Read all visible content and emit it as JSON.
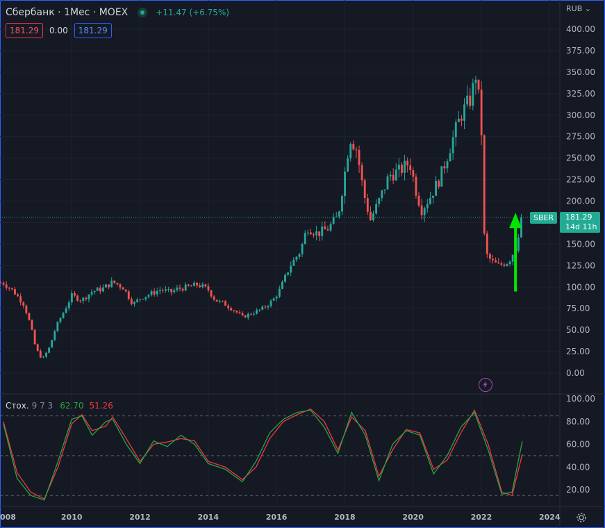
{
  "header": {
    "title": "Сбербанк · 1Мес · MOEX",
    "change": "+11.47 (+6.75%)",
    "price_red": "181.29",
    "price_mid": "0.00",
    "price_blue": "181.29",
    "currency": "RUB"
  },
  "price_tag": {
    "symbol": "SBER",
    "price": "181.29",
    "countdown": "14d 11h"
  },
  "stoch": {
    "label": "Стох.",
    "params": "9 7 3",
    "k_value": "62.70",
    "d_value": "51.26"
  },
  "colors": {
    "up": "#26a69a",
    "down": "#ef5350",
    "k_line": "#26a641",
    "d_line": "#f23645",
    "arrow": "#00e600"
  },
  "icons": {
    "settings": "gear-icon",
    "bolt": "lightning-icon",
    "status": "market-status-icon"
  },
  "chart_data": {
    "type": "candlestick",
    "y_ticks": [
      "400.00",
      "375.00",
      "350.00",
      "325.00",
      "300.00",
      "275.00",
      "250.00",
      "225.00",
      "200.00",
      "175.00",
      "150.00",
      "125.00",
      "100.00",
      "75.00",
      "50.00",
      "25.00",
      "0.00"
    ],
    "ylim": [
      0,
      400
    ],
    "x_ticks": [
      "008",
      "2010",
      "2012",
      "2014",
      "2016",
      "2018",
      "2020",
      "2022",
      "2024"
    ],
    "xlim": [
      2007.9,
      2024.3
    ],
    "last_price": 181.29,
    "close_series": [
      [
        2008.0,
        105
      ],
      [
        2008.3,
        95
      ],
      [
        2008.6,
        80
      ],
      [
        2008.8,
        55
      ],
      [
        2008.95,
        28
      ],
      [
        2009.15,
        16
      ],
      [
        2009.35,
        30
      ],
      [
        2009.55,
        55
      ],
      [
        2009.75,
        70
      ],
      [
        2010.0,
        90
      ],
      [
        2010.3,
        85
      ],
      [
        2010.6,
        95
      ],
      [
        2010.9,
        98
      ],
      [
        2011.2,
        106
      ],
      [
        2011.5,
        100
      ],
      [
        2011.8,
        80
      ],
      [
        2012.0,
        87
      ],
      [
        2012.3,
        92
      ],
      [
        2012.6,
        97
      ],
      [
        2012.9,
        94
      ],
      [
        2013.1,
        98
      ],
      [
        2013.4,
        100
      ],
      [
        2013.7,
        103
      ],
      [
        2014.0,
        97
      ],
      [
        2014.2,
        85
      ],
      [
        2014.5,
        80
      ],
      [
        2014.8,
        72
      ],
      [
        2015.0,
        65
      ],
      [
        2015.3,
        70
      ],
      [
        2015.6,
        75
      ],
      [
        2015.9,
        85
      ],
      [
        2016.1,
        97
      ],
      [
        2016.4,
        125
      ],
      [
        2016.7,
        142
      ],
      [
        2016.9,
        170
      ],
      [
        2017.2,
        162
      ],
      [
        2017.5,
        168
      ],
      [
        2017.8,
        182
      ],
      [
        2018.0,
        233
      ],
      [
        2018.15,
        275
      ],
      [
        2018.35,
        260
      ],
      [
        2018.55,
        210
      ],
      [
        2018.75,
        178
      ],
      [
        2019.0,
        200
      ],
      [
        2019.3,
        230
      ],
      [
        2019.6,
        235
      ],
      [
        2019.9,
        245
      ],
      [
        2020.1,
        210
      ],
      [
        2020.25,
        190
      ],
      [
        2020.5,
        205
      ],
      [
        2020.8,
        228
      ],
      [
        2021.1,
        265
      ],
      [
        2021.4,
        300
      ],
      [
        2021.7,
        320
      ],
      [
        2021.85,
        350
      ],
      [
        2022.0,
        285
      ],
      [
        2022.1,
        140
      ],
      [
        2022.3,
        130
      ],
      [
        2022.5,
        125
      ],
      [
        2022.8,
        130
      ],
      [
        2023.0,
        145
      ],
      [
        2023.15,
        175
      ],
      [
        2023.2,
        181.29
      ]
    ],
    "stoch_k": [
      [
        2008.0,
        78
      ],
      [
        2008.4,
        30
      ],
      [
        2008.8,
        15
      ],
      [
        2009.2,
        11
      ],
      [
        2009.6,
        45
      ],
      [
        2010.0,
        82
      ],
      [
        2010.3,
        85
      ],
      [
        2010.6,
        68
      ],
      [
        2011.0,
        80
      ],
      [
        2011.2,
        82
      ],
      [
        2011.6,
        60
      ],
      [
        2012.0,
        43
      ],
      [
        2012.4,
        63
      ],
      [
        2012.8,
        58
      ],
      [
        2013.2,
        68
      ],
      [
        2013.6,
        60
      ],
      [
        2014.0,
        43
      ],
      [
        2014.5,
        38
      ],
      [
        2015.0,
        27
      ],
      [
        2015.4,
        45
      ],
      [
        2015.8,
        70
      ],
      [
        2016.2,
        82
      ],
      [
        2016.6,
        88
      ],
      [
        2017.0,
        90
      ],
      [
        2017.4,
        75
      ],
      [
        2017.8,
        52
      ],
      [
        2018.2,
        88
      ],
      [
        2018.6,
        68
      ],
      [
        2019.0,
        28
      ],
      [
        2019.4,
        60
      ],
      [
        2019.8,
        72
      ],
      [
        2020.2,
        68
      ],
      [
        2020.6,
        34
      ],
      [
        2021.0,
        50
      ],
      [
        2021.4,
        75
      ],
      [
        2021.8,
        88
      ],
      [
        2022.2,
        55
      ],
      [
        2022.6,
        16
      ],
      [
        2022.9,
        18
      ],
      [
        2023.2,
        62.7
      ]
    ],
    "stoch_d": [
      [
        2008.0,
        80
      ],
      [
        2008.4,
        35
      ],
      [
        2008.8,
        18
      ],
      [
        2009.2,
        12
      ],
      [
        2009.6,
        40
      ],
      [
        2010.0,
        78
      ],
      [
        2010.3,
        86
      ],
      [
        2010.6,
        72
      ],
      [
        2011.0,
        76
      ],
      [
        2011.2,
        84
      ],
      [
        2011.6,
        65
      ],
      [
        2012.0,
        45
      ],
      [
        2012.4,
        60
      ],
      [
        2012.8,
        62
      ],
      [
        2013.2,
        65
      ],
      [
        2013.6,
        63
      ],
      [
        2014.0,
        45
      ],
      [
        2014.5,
        40
      ],
      [
        2015.0,
        29
      ],
      [
        2015.4,
        40
      ],
      [
        2015.8,
        65
      ],
      [
        2016.2,
        80
      ],
      [
        2016.6,
        86
      ],
      [
        2017.0,
        91
      ],
      [
        2017.4,
        80
      ],
      [
        2017.8,
        55
      ],
      [
        2018.2,
        84
      ],
      [
        2018.6,
        72
      ],
      [
        2019.0,
        32
      ],
      [
        2019.4,
        55
      ],
      [
        2019.8,
        73
      ],
      [
        2020.2,
        70
      ],
      [
        2020.6,
        38
      ],
      [
        2021.0,
        46
      ],
      [
        2021.4,
        70
      ],
      [
        2021.8,
        90
      ],
      [
        2022.2,
        60
      ],
      [
        2022.6,
        18
      ],
      [
        2022.9,
        15
      ],
      [
        2023.2,
        51.26
      ]
    ],
    "stoch_ticks": [
      "100.00",
      "80.00",
      "60.00",
      "40.00",
      "20.00"
    ],
    "stoch_ylim": [
      5,
      100
    ],
    "stoch_levels": [
      85,
      50,
      15
    ],
    "arrow": {
      "x": 2023.0,
      "from": 95,
      "to": 180
    }
  }
}
